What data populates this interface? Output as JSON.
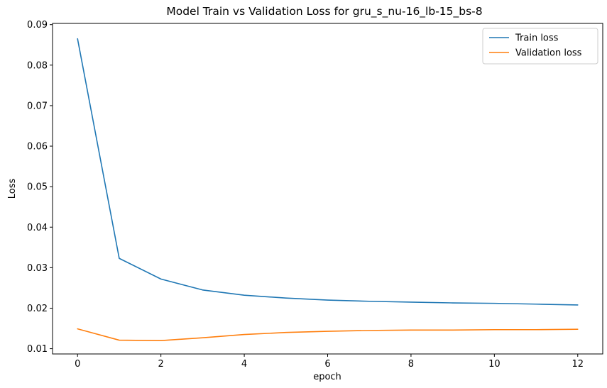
{
  "chart_data": {
    "type": "line",
    "title": "Model Train vs Validation Loss for gru_s_nu-16_lb-15_bs-8",
    "xlabel": "epoch",
    "ylabel": "Loss",
    "xlim": [
      -0.6,
      12.6
    ],
    "ylim": [
      0.0087,
      0.0903
    ],
    "xticks": [
      0,
      2,
      4,
      6,
      8,
      10,
      12
    ],
    "xtick_labels": [
      "0",
      "2",
      "4",
      "6",
      "8",
      "10",
      "12"
    ],
    "yticks": [
      0.01,
      0.02,
      0.03,
      0.04,
      0.05,
      0.06,
      0.07,
      0.08,
      0.09
    ],
    "ytick_labels": [
      "0.01",
      "0.02",
      "0.03",
      "0.04",
      "0.05",
      "0.06",
      "0.07",
      "0.08",
      "0.09"
    ],
    "grid": false,
    "legend_position": "top-right",
    "x": [
      0,
      1,
      2,
      3,
      4,
      5,
      6,
      7,
      8,
      9,
      10,
      11,
      12
    ],
    "series": [
      {
        "name": "Train loss",
        "color": "#1f77b4",
        "values": [
          0.0865,
          0.0323,
          0.0272,
          0.0245,
          0.0232,
          0.0225,
          0.022,
          0.0217,
          0.0215,
          0.0213,
          0.0212,
          0.021,
          0.0208
        ]
      },
      {
        "name": "Validation loss",
        "color": "#ff7f0e",
        "values": [
          0.0149,
          0.0121,
          0.012,
          0.0127,
          0.0135,
          0.014,
          0.0143,
          0.0145,
          0.0146,
          0.0146,
          0.0147,
          0.0147,
          0.0148
        ]
      }
    ]
  }
}
